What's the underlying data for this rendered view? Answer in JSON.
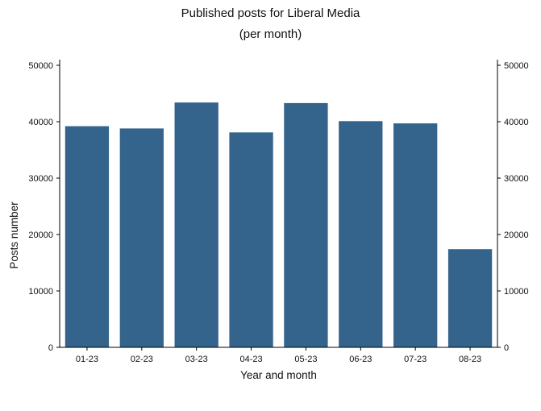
{
  "chart_data": {
    "type": "bar",
    "title": "Published posts for Liberal Media",
    "subtitle": "(per month)",
    "xlabel": "Year and month",
    "ylabel": "Posts number",
    "categories": [
      "01-23",
      "02-23",
      "03-23",
      "04-23",
      "05-23",
      "06-23",
      "07-23",
      "08-23"
    ],
    "values": [
      39200,
      38800,
      43400,
      38100,
      43300,
      40100,
      39700,
      17400
    ],
    "ylim": [
      0,
      51000
    ],
    "yticks": [
      "0",
      "10000",
      "20000",
      "30000",
      "40000",
      "50000"
    ],
    "grid": false,
    "legend": "none",
    "bar_color": "#34648b",
    "axes": "left-and-right"
  }
}
